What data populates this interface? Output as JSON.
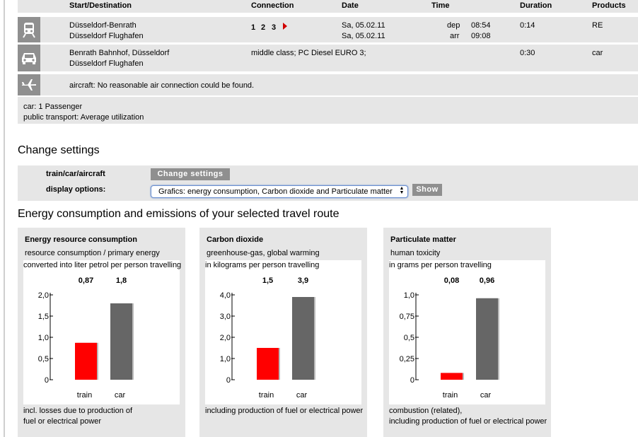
{
  "table": {
    "headers": {
      "start_destination": "Start/Destination",
      "connection": "Connection",
      "date": "Date",
      "time": "Time",
      "duration": "Duration",
      "products": "Products"
    },
    "train": {
      "icon": "train-icon",
      "start": "Düsseldorf-Benrath",
      "destination": "Düsseldorf Flughafen",
      "connections": [
        "1",
        "2",
        "3"
      ],
      "date_dep": "Sa, 05.02.11",
      "date_arr": "Sa, 05.02.11",
      "dep_label": "dep",
      "arr_label": "arr",
      "dep_time": "08:54",
      "arr_time": "09:08",
      "duration": "0:14",
      "product": "RE"
    },
    "car": {
      "icon": "car-icon",
      "start": "Benrath Bahnhof, Düsseldorf",
      "destination": "Düsseldorf Flughafen",
      "connection": "middle class; PC Diesel EURO 3;",
      "duration": "0:30",
      "product": "car"
    },
    "aircraft": {
      "icon": "airplane-icon",
      "message": "aircraft: No reasonable air connection could be found."
    }
  },
  "notes": {
    "car": "car: 1 Passenger",
    "public_transport": "public transport: Average utilization"
  },
  "settings": {
    "heading": "Change settings",
    "mode_label": "train/car/aircraft",
    "change_button": "Change settings",
    "display_label": "display options:",
    "display_value": "Grafics: energy consumption, Carbon dioxide and Particulate matter",
    "show_button": "Show"
  },
  "results_heading": "Energy consumption and emissions of your selected travel route",
  "colors": {
    "train": "#ff0000",
    "car": "#666666",
    "panel_bg": "#e6e6e6",
    "button_bg": "#8f8f8f"
  },
  "chart_data": [
    {
      "type": "bar",
      "title": "Energy resource consumption",
      "subtitle": "resource consumption / primary energy",
      "unit_note": "converted into liter petrol per person travelling",
      "categories": [
        "train",
        "car"
      ],
      "values": [
        0.87,
        1.8
      ],
      "value_labels": [
        "0,87",
        "1,8"
      ],
      "ylim": [
        0,
        2.0
      ],
      "ticks": [
        0,
        0.5,
        1.0,
        1.5,
        2.0
      ],
      "tick_labels": [
        "0",
        "0,5",
        "1,0",
        "1,5",
        "2,0"
      ],
      "footnote": [
        "incl. losses due to production of",
        "fuel or electrical power"
      ]
    },
    {
      "type": "bar",
      "title": "Carbon dioxide",
      "subtitle": "greenhouse-gas, global warming",
      "unit_note": "in kilograms per person travelling",
      "categories": [
        "train",
        "car"
      ],
      "values": [
        1.5,
        3.9
      ],
      "value_labels": [
        "1,5",
        "3,9"
      ],
      "ylim": [
        0,
        4.0
      ],
      "ticks": [
        0,
        1.0,
        2.0,
        3.0,
        4.0
      ],
      "tick_labels": [
        "0",
        "1,0",
        "2,0",
        "3,0",
        "4,0"
      ],
      "footnote": [
        "including production of fuel or electrical power",
        ""
      ]
    },
    {
      "type": "bar",
      "title": "Particulate matter",
      "subtitle": "human toxicity",
      "unit_note": "in grams per person travelling",
      "categories": [
        "train",
        "car"
      ],
      "values": [
        0.08,
        0.96
      ],
      "value_labels": [
        "0,08",
        "0,96"
      ],
      "ylim": [
        0,
        1.0
      ],
      "ticks": [
        0,
        0.25,
        0.5,
        0.75,
        1.0
      ],
      "tick_labels": [
        "0",
        "0,25",
        "0,5",
        "0,75",
        "1,0"
      ],
      "footnote": [
        "combustion (related),",
        "including production of fuel or electrical power"
      ]
    }
  ]
}
